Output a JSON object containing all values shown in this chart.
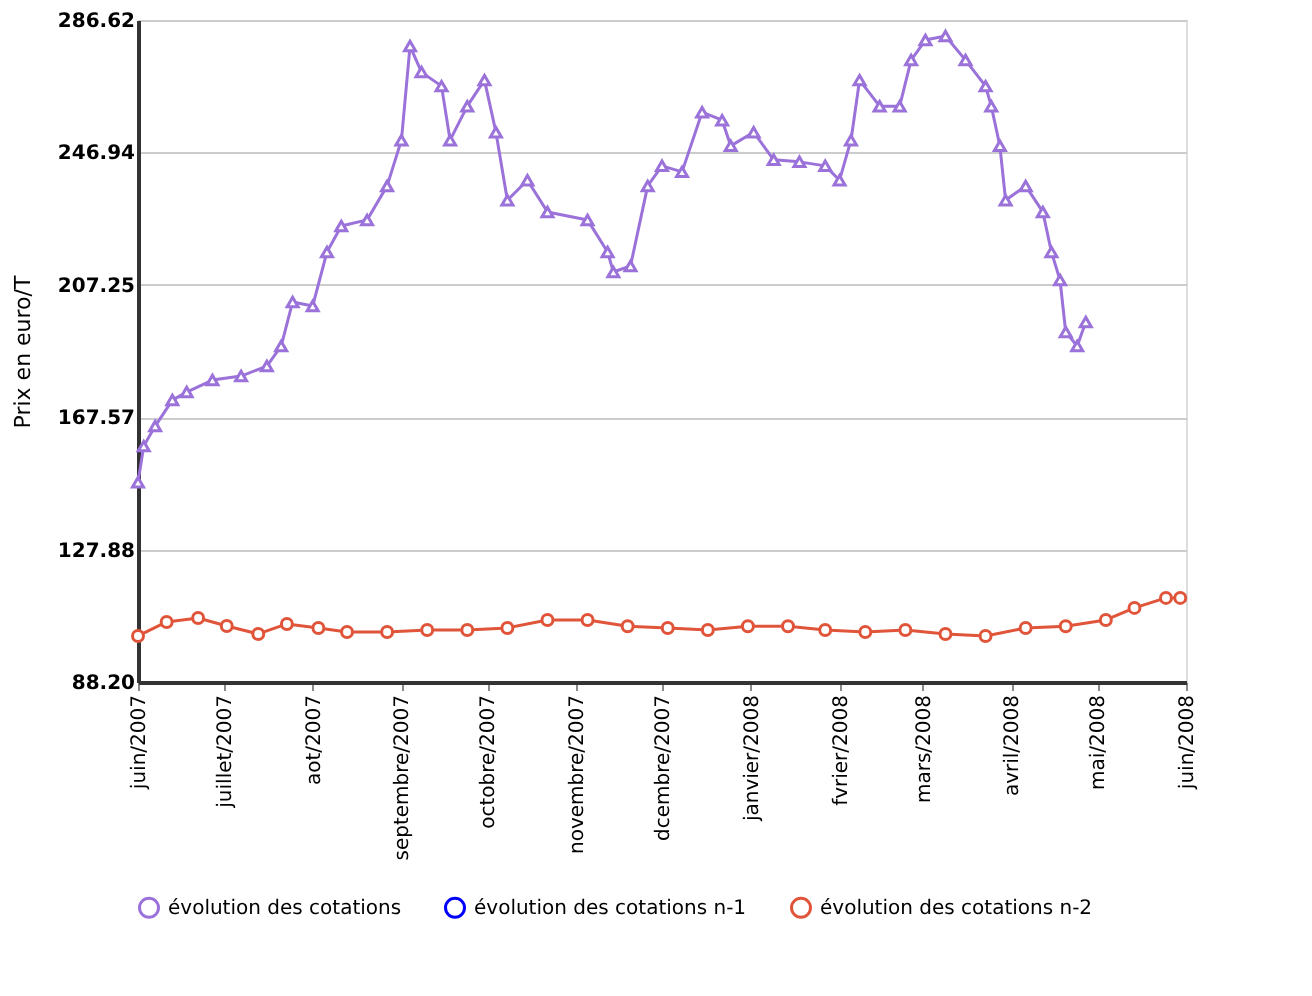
{
  "chart_data": {
    "type": "line",
    "ylabel": "Prix en euro/T",
    "grid": "y",
    "legend": "bottom",
    "xlim": [
      "2007-06-01",
      "2008-06-01"
    ],
    "xticks": [
      {
        "value": "2007-06-01",
        "label": "juin/2007"
      },
      {
        "value": "2007-07-01",
        "label": "juillet/2007"
      },
      {
        "value": "2007-08-01",
        "label": "aot/2007"
      },
      {
        "value": "2007-09-01",
        "label": "septembre/2007"
      },
      {
        "value": "2007-10-01",
        "label": "octobre/2007"
      },
      {
        "value": "2007-11-01",
        "label": "novembre/2007"
      },
      {
        "value": "2007-12-01",
        "label": "dcembre/2007"
      },
      {
        "value": "2008-01-01",
        "label": "janvier/2008"
      },
      {
        "value": "2008-02-01",
        "label": "fvrier/2008"
      },
      {
        "value": "2008-03-01",
        "label": "mars/2008"
      },
      {
        "value": "2008-04-01",
        "label": "avril/2008"
      },
      {
        "value": "2008-05-01",
        "label": "mai/2008"
      },
      {
        "value": "2008-06-01",
        "label": "juin/2008"
      }
    ],
    "ylim": [
      88.2,
      286.62
    ],
    "yticks": [
      {
        "value": 88.2,
        "label": "88.20"
      },
      127.88,
      167.57,
      207.25,
      246.94,
      286.62
    ],
    "series": [
      {
        "name": "évolution des cotations",
        "color": "#9b72d9",
        "marker": "triangle",
        "x": [
          "2007-06-01",
          "2007-06-03",
          "2007-06-07",
          "2007-06-13",
          "2007-06-18",
          "2007-06-27",
          "2007-07-07",
          "2007-07-16",
          "2007-07-21",
          "2007-07-25",
          "2007-08-01",
          "2007-08-06",
          "2007-08-11",
          "2007-08-20",
          "2007-08-27",
          "2007-09-01",
          "2007-09-04",
          "2007-09-08",
          "2007-09-15",
          "2007-09-18",
          "2007-09-24",
          "2007-09-30",
          "2007-10-04",
          "2007-10-08",
          "2007-10-15",
          "2007-10-22",
          "2007-11-05",
          "2007-11-12",
          "2007-11-14",
          "2007-11-20",
          "2007-11-26",
          "2007-12-01",
          "2007-12-08",
          "2007-12-15",
          "2007-12-22",
          "2007-12-25",
          "2008-01-02",
          "2008-01-09",
          "2008-01-18",
          "2008-01-27",
          "2008-02-01",
          "2008-02-05",
          "2008-02-08",
          "2008-02-15",
          "2008-02-22",
          "2008-02-26",
          "2008-03-02",
          "2008-03-09",
          "2008-03-16",
          "2008-03-23",
          "2008-03-25",
          "2008-03-28",
          "2008-03-30",
          "2008-04-06",
          "2008-04-12",
          "2008-04-15",
          "2008-04-18",
          "2008-04-20",
          "2008-04-24",
          "2008-04-27"
        ],
        "values": [
          148.1,
          158.9,
          164.9,
          172.7,
          175.1,
          178.7,
          179.9,
          182.9,
          188.9,
          202.1,
          200.9,
          217.1,
          224.9,
          226.7,
          236.9,
          250.6,
          278.8,
          271.0,
          266.8,
          250.6,
          260.8,
          268.6,
          253.0,
          232.6,
          238.6,
          229.1,
          226.7,
          217.1,
          211.1,
          212.9,
          236.9,
          242.9,
          241.1,
          259.0,
          256.6,
          248.9,
          253.0,
          244.7,
          244.1,
          242.9,
          238.6,
          250.6,
          268.6,
          260.8,
          260.8,
          274.6,
          280.6,
          281.8,
          274.6,
          266.8,
          260.8,
          248.9,
          232.6,
          236.9,
          229.1,
          217.1,
          208.7,
          193.1,
          188.9,
          196.1
        ]
      },
      {
        "name": "évolution des cotations n-1",
        "color": "#0000ff"
      },
      {
        "name": "évolution des cotations n-2",
        "color": "#e0553a",
        "marker": "circle",
        "x": [
          "2007-06-01",
          "2007-06-11",
          "2007-06-22",
          "2007-07-02",
          "2007-07-13",
          "2007-07-23",
          "2007-08-03",
          "2007-08-13",
          "2007-08-27",
          "2007-09-10",
          "2007-09-24",
          "2007-10-08",
          "2007-10-22",
          "2007-11-05",
          "2007-11-19",
          "2007-12-03",
          "2007-12-17",
          "2007-12-31",
          "2008-01-14",
          "2008-01-27",
          "2008-02-10",
          "2008-02-24",
          "2008-03-09",
          "2008-03-23",
          "2008-04-06",
          "2008-04-20",
          "2008-05-04",
          "2008-05-14",
          "2008-05-25",
          "2008-05-30"
        ],
        "values": [
          102.0,
          106.2,
          107.4,
          105.0,
          102.6,
          105.6,
          104.4,
          103.2,
          103.2,
          103.8,
          103.8,
          104.4,
          106.8,
          106.8,
          104.9,
          104.4,
          103.8,
          104.9,
          104.9,
          103.8,
          103.2,
          103.8,
          102.6,
          102.0,
          104.4,
          104.9,
          106.8,
          110.4,
          113.4,
          113.4
        ]
      }
    ]
  }
}
